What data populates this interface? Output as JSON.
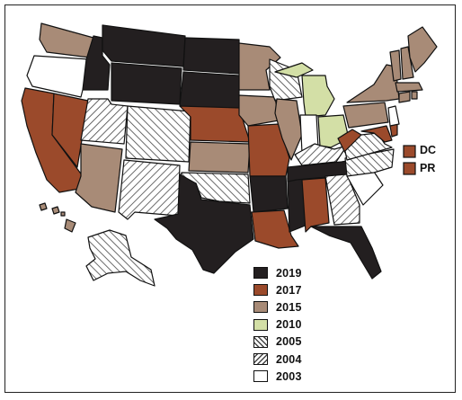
{
  "legend": [
    {
      "label": "2019",
      "fill": "dark"
    },
    {
      "label": "2017",
      "fill": "rust"
    },
    {
      "label": "2015",
      "fill": "tan"
    },
    {
      "label": "2010",
      "fill": "lime"
    },
    {
      "label": "2005",
      "fill": "hatch2005"
    },
    {
      "label": "2004",
      "fill": "hatch2004"
    },
    {
      "label": "2003",
      "fill": "white"
    }
  ],
  "territories": [
    {
      "label": "DC",
      "fill": "rust"
    },
    {
      "label": "PR",
      "fill": "rust"
    }
  ],
  "colors": {
    "dark": "#231f20",
    "rust": "#9b4a2b",
    "tan": "#a88b77",
    "lime": "#d3dfa6",
    "white": "#ffffff",
    "outline": "#111111"
  },
  "states": {
    "WA": "tan",
    "OR": "white",
    "CA": "rust",
    "NV": "rust",
    "ID": "dark",
    "MT": "dark",
    "WY": "dark",
    "UT": "hatch2005",
    "AZ": "tan",
    "CO": "hatch2004",
    "NM": "hatch2005",
    "ND": "dark",
    "SD": "dark",
    "NE": "rust",
    "KS": "tan",
    "OK": "hatch2004",
    "TX": "dark",
    "MN": "tan",
    "IA": "tan",
    "MO": "rust",
    "AR": "dark",
    "LA": "rust",
    "WI": "hatch2004",
    "IL": "tan",
    "MS": "dark",
    "MI": "lime",
    "IN": "white",
    "KY": "hatch2005",
    "TN": "dark",
    "AL": "rust",
    "OH": "lime",
    "WV": "rust",
    "GA": "hatch2005",
    "FL": "dark",
    "SC": "white",
    "NC": "hatch2004",
    "VA": "hatch2004",
    "PA": "tan",
    "NY": "tan",
    "MD": "rust",
    "DE": "rust",
    "NJ": "white",
    "CT": "tan",
    "RI": "tan",
    "MA": "tan",
    "VT": "tan",
    "NH": "tan",
    "ME": "tan",
    "AK": "hatch2004",
    "HI": "tan"
  }
}
